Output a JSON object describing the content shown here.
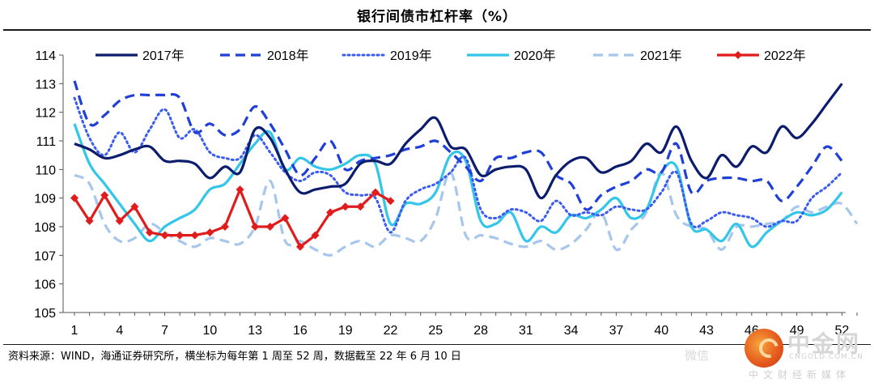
{
  "page": {
    "title": "银行间债市杠杆率（%）",
    "source": "资料来源：WIND，海通证券研究所，横坐标为每年第 1 周至 52 周，数据截至 22 年 6 月 10 日"
  },
  "watermark": {
    "brand": "中金网",
    "url": "CNGOLD.COM.CN",
    "slogan": "中文财经新媒体",
    "wechat_glyph": "微信"
  },
  "chart_data": {
    "type": "line",
    "title": "银行间债市杠杆率（%）",
    "xlabel": "",
    "ylabel": "",
    "ylim": [
      105,
      114
    ],
    "xlim": [
      1,
      53
    ],
    "yticks": [
      105,
      106,
      107,
      108,
      109,
      110,
      111,
      112,
      113,
      114
    ],
    "xticks": [
      1,
      4,
      7,
      10,
      13,
      16,
      19,
      22,
      25,
      28,
      31,
      34,
      37,
      40,
      43,
      46,
      49,
      52
    ],
    "grid": false,
    "legend_position": "top",
    "series": [
      {
        "name": "2017年",
        "color": "#0d1d6e",
        "style": "solid",
        "x": [
          1,
          2,
          3,
          4,
          5,
          6,
          7,
          8,
          9,
          10,
          11,
          12,
          13,
          14,
          15,
          16,
          17,
          18,
          19,
          20,
          21,
          22,
          23,
          24,
          25,
          26,
          27,
          28,
          29,
          30,
          31,
          32,
          33,
          34,
          35,
          36,
          37,
          38,
          39,
          40,
          41,
          42,
          43,
          44,
          45,
          46,
          47,
          48,
          49,
          50,
          51,
          52
        ],
        "values": [
          110.9,
          110.7,
          110.4,
          110.5,
          110.7,
          110.8,
          110.3,
          110.3,
          110.2,
          109.7,
          110.1,
          109.9,
          111.4,
          111.1,
          110.0,
          109.2,
          109.3,
          109.4,
          109.5,
          110.2,
          110.3,
          110.2,
          110.9,
          111.4,
          111.8,
          110.8,
          110.7,
          109.8,
          110.0,
          110.1,
          110.0,
          109.0,
          109.8,
          110.3,
          110.4,
          109.9,
          110.1,
          110.3,
          110.9,
          110.6,
          111.5,
          110.3,
          109.7,
          110.5,
          110.1,
          110.8,
          110.6,
          111.5,
          111.1,
          111.6,
          112.3,
          113.0
        ]
      },
      {
        "name": "2018年",
        "color": "#1f3fd6",
        "style": "dash",
        "x": [
          1,
          2,
          3,
          4,
          5,
          6,
          7,
          8,
          9,
          10,
          11,
          12,
          13,
          14,
          15,
          16,
          17,
          18,
          19,
          20,
          21,
          22,
          23,
          24,
          25,
          26,
          27,
          28,
          29,
          30,
          31,
          32,
          33,
          34,
          35,
          36,
          37,
          38,
          39,
          40,
          41,
          42,
          43,
          44,
          45,
          46,
          47,
          48,
          49,
          50,
          51,
          52
        ],
        "values": [
          113.1,
          111.6,
          111.9,
          112.4,
          112.6,
          112.6,
          112.6,
          112.5,
          111.3,
          111.6,
          111.2,
          111.4,
          112.2,
          111.6,
          110.7,
          109.8,
          110.4,
          111.0,
          110.0,
          110.3,
          110.4,
          110.5,
          110.7,
          110.8,
          111.0,
          110.6,
          110.1,
          109.6,
          110.4,
          110.4,
          110.6,
          110.6,
          109.8,
          109.5,
          108.6,
          109.1,
          109.4,
          109.6,
          110.0,
          109.9,
          110.9,
          109.2,
          109.6,
          109.7,
          109.7,
          109.6,
          109.6,
          108.9,
          109.4,
          110.1,
          110.8,
          110.3
        ]
      },
      {
        "name": "2019年",
        "color": "#3a5cf0",
        "style": "dot",
        "x": [
          1,
          2,
          3,
          4,
          5,
          6,
          7,
          8,
          9,
          10,
          11,
          12,
          13,
          14,
          15,
          16,
          17,
          18,
          19,
          20,
          21,
          22,
          23,
          24,
          25,
          26,
          27,
          28,
          29,
          30,
          31,
          32,
          33,
          34,
          35,
          36,
          37,
          38,
          39,
          40,
          41,
          42,
          43,
          44,
          45,
          46,
          47,
          48,
          49,
          50,
          51,
          52
        ],
        "values": [
          112.5,
          111.1,
          110.5,
          111.3,
          110.6,
          111.4,
          112.1,
          111.1,
          111.4,
          110.6,
          110.4,
          110.4,
          111.2,
          110.6,
          109.9,
          109.6,
          109.9,
          109.8,
          109.2,
          109.1,
          109.0,
          107.8,
          108.9,
          109.3,
          109.5,
          109.9,
          110.4,
          108.6,
          108.3,
          108.6,
          108.5,
          108.2,
          108.9,
          108.4,
          108.5,
          108.4,
          108.7,
          108.6,
          108.6,
          109.2,
          109.9,
          108.1,
          108.2,
          108.5,
          108.4,
          108.3,
          108.0,
          108.2,
          108.2,
          109.0,
          109.4,
          109.9
        ]
      },
      {
        "name": "2020年",
        "color": "#33c6e8",
        "style": "solid",
        "x": [
          1,
          2,
          3,
          4,
          5,
          6,
          7,
          8,
          9,
          10,
          11,
          12,
          13,
          14,
          15,
          16,
          17,
          18,
          19,
          20,
          21,
          22,
          23,
          24,
          25,
          26,
          27,
          28,
          29,
          30,
          31,
          32,
          33,
          34,
          35,
          36,
          37,
          38,
          39,
          40,
          41,
          42,
          43,
          44,
          45,
          46,
          47,
          48,
          49,
          50,
          51,
          52
        ],
        "values": [
          111.6,
          110.2,
          109.5,
          108.8,
          108.1,
          107.5,
          108.0,
          108.3,
          108.6,
          109.3,
          109.5,
          110.2,
          110.9,
          111.3,
          110.0,
          110.4,
          110.1,
          110.0,
          110.2,
          110.5,
          110.2,
          108.1,
          108.8,
          108.8,
          109.2,
          110.5,
          110.3,
          108.2,
          108.1,
          108.5,
          107.5,
          108.0,
          107.8,
          108.4,
          108.3,
          108.6,
          109.0,
          108.3,
          108.6,
          109.9,
          110.1,
          108.0,
          107.9,
          107.5,
          108.1,
          107.3,
          107.8,
          108.2,
          108.5,
          108.4,
          108.6,
          109.2
        ]
      },
      {
        "name": "2021年",
        "color": "#a6c6ec",
        "style": "dash",
        "x": [
          1,
          2,
          3,
          4,
          5,
          6,
          7,
          8,
          9,
          10,
          11,
          12,
          13,
          14,
          15,
          16,
          17,
          18,
          19,
          20,
          21,
          22,
          23,
          24,
          25,
          26,
          27,
          28,
          29,
          30,
          31,
          32,
          33,
          34,
          35,
          36,
          37,
          38,
          39,
          40,
          41,
          42,
          43,
          44,
          45,
          46,
          47,
          48,
          49,
          50,
          51,
          52,
          53
        ],
        "values": [
          109.8,
          109.5,
          108.1,
          107.5,
          107.6,
          108.1,
          107.8,
          107.5,
          107.3,
          107.6,
          107.5,
          107.4,
          108.0,
          109.6,
          107.5,
          107.5,
          107.2,
          107.0,
          107.3,
          107.5,
          107.3,
          107.7,
          107.6,
          107.5,
          108.3,
          109.9,
          107.7,
          107.7,
          107.6,
          107.4,
          107.3,
          107.5,
          107.2,
          107.4,
          107.9,
          108.5,
          107.2,
          107.9,
          108.5,
          109.9,
          108.4,
          108.0,
          107.9,
          107.2,
          108.0,
          108.0,
          108.1,
          108.2,
          108.7,
          108.5,
          108.7,
          108.8,
          108.1
        ]
      },
      {
        "name": "2022年",
        "color": "#e11c1c",
        "style": "solid-marker",
        "x": [
          1,
          2,
          3,
          4,
          5,
          6,
          7,
          8,
          9,
          10,
          11,
          12,
          13,
          14,
          15,
          16,
          17,
          18,
          19,
          20,
          21,
          22
        ],
        "values": [
          109.0,
          108.2,
          109.1,
          108.2,
          108.7,
          107.8,
          107.7,
          107.7,
          107.7,
          107.8,
          108.0,
          109.3,
          108.0,
          108.0,
          108.3,
          107.3,
          107.7,
          108.5,
          108.7,
          108.7,
          109.2,
          108.9
        ]
      }
    ]
  }
}
